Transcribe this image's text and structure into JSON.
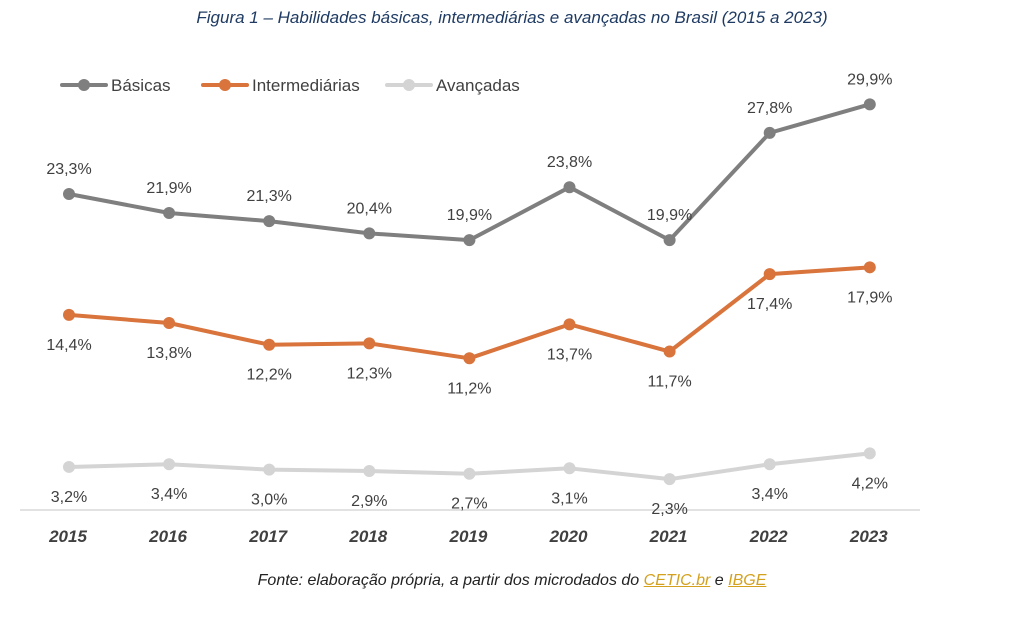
{
  "title": "Figura 1 – Habilidades básicas, intermediárias e avançadas no Brasil (2015 a 2023)",
  "source": {
    "prefix": "Fonte: elaboração própria, a partir dos microdados do",
    "link1": "CETIC.br",
    "joiner": "e",
    "link2": "IBGE"
  },
  "colors": {
    "basicas": "#7f7f7f",
    "intermediarias": "#d8743c",
    "avancadas": "#d4d4d4",
    "axis": "#d9d9d9",
    "link": "#d4a11e",
    "title": "#1f3b63"
  },
  "chart_data": {
    "type": "line",
    "title": "Figura 1 – Habilidades básicas, intermediárias e avançadas no Brasil (2015 a 2023)",
    "categories": [
      "2015",
      "2016",
      "2017",
      "2018",
      "2019",
      "2020",
      "2021",
      "2022",
      "2023"
    ],
    "ylim": [
      0,
      35
    ],
    "grid": false,
    "legend_position": "top-left",
    "series": [
      {
        "name": "Básicas",
        "values": [
          23.3,
          21.9,
          21.3,
          20.4,
          19.9,
          23.8,
          19.9,
          27.8,
          29.9
        ],
        "labels": [
          "23,3%",
          "21,9%",
          "21,3%",
          "20,4%",
          "19,9%",
          "23,8%",
          "19,9%",
          "27,8%",
          "29,9%"
        ]
      },
      {
        "name": "Intermediárias",
        "values": [
          14.4,
          13.8,
          12.2,
          12.3,
          11.2,
          13.7,
          11.7,
          17.4,
          17.9
        ],
        "labels": [
          "14,4%",
          "13,8%",
          "12,2%",
          "12,3%",
          "11,2%",
          "13,7%",
          "11,7%",
          "17,4%",
          "17,9%"
        ]
      },
      {
        "name": "Avançadas",
        "values": [
          3.2,
          3.4,
          3.0,
          2.9,
          2.7,
          3.1,
          2.3,
          3.4,
          4.2
        ],
        "labels": [
          "3,2%",
          "3,4%",
          "3,0%",
          "2,9%",
          "2,7%",
          "3,1%",
          "2,3%",
          "3,4%",
          "4,2%"
        ]
      }
    ]
  }
}
